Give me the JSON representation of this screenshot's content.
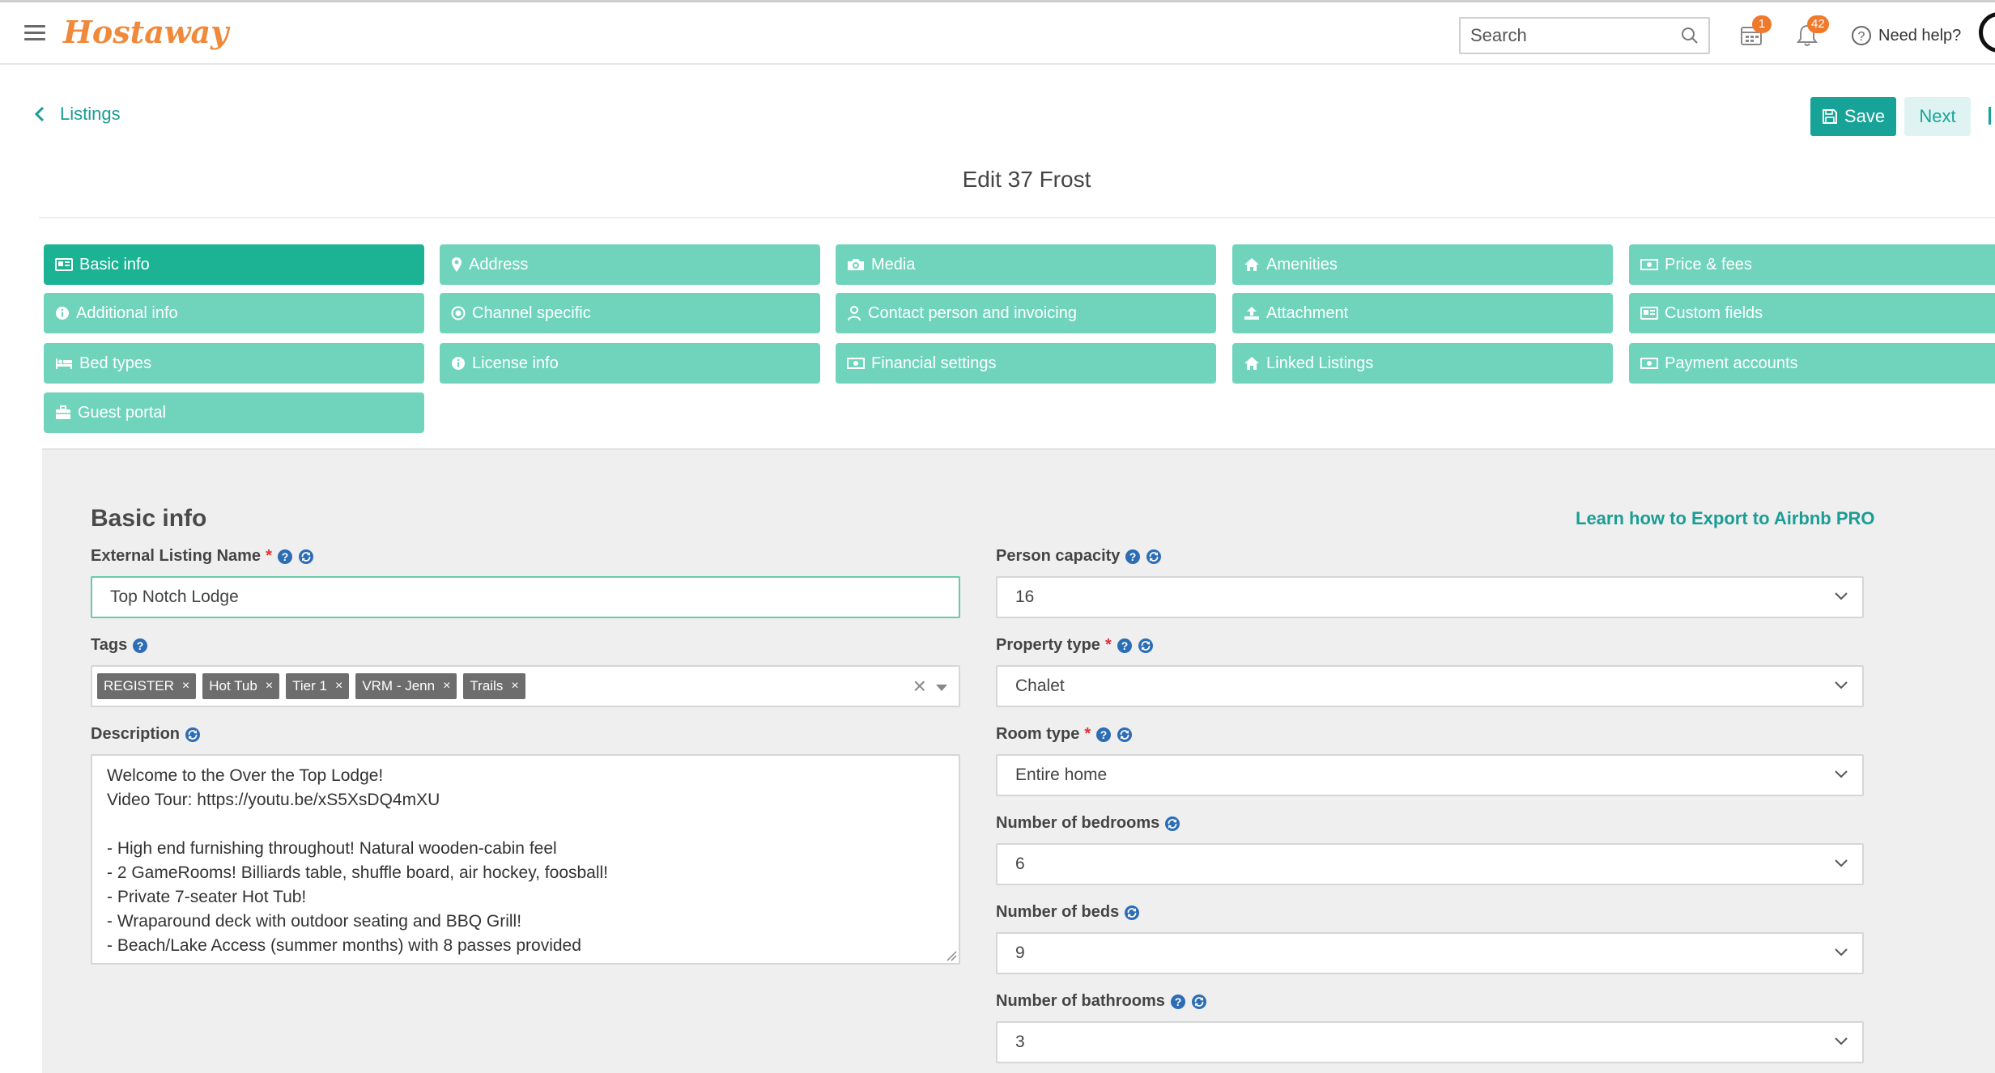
{
  "app": {
    "logo": "Hostaway",
    "search_placeholder": "Search",
    "calendar_badge": "1",
    "notifications_badge": "42",
    "help_label": "Need help?"
  },
  "header": {
    "back_label": "Listings",
    "save_label": "Save",
    "next_label": "Next",
    "title": "Edit 37 Frost"
  },
  "tabs": [
    {
      "label": "Basic info",
      "icon": "id-card-icon",
      "active": true
    },
    {
      "label": "Address",
      "icon": "map-marker-icon"
    },
    {
      "label": "Media",
      "icon": "camera-icon"
    },
    {
      "label": "Amenities",
      "icon": "home-icon"
    },
    {
      "label": "Price & fees",
      "icon": "money-icon"
    },
    {
      "label": "Additional info",
      "icon": "info-circle-icon"
    },
    {
      "label": "Channel specific",
      "icon": "channel-icon"
    },
    {
      "label": "Contact person and invoicing",
      "icon": "user-icon"
    },
    {
      "label": "Attachment",
      "icon": "upload-icon"
    },
    {
      "label": "Custom fields",
      "icon": "id-card-icon"
    },
    {
      "label": "Bed types",
      "icon": "bed-icon"
    },
    {
      "label": "License info",
      "icon": "info-circle-icon"
    },
    {
      "label": "Financial settings",
      "icon": "money-icon"
    },
    {
      "label": "Linked Listings",
      "icon": "home-icon"
    },
    {
      "label": "Payment accounts",
      "icon": "money-icon"
    },
    {
      "label": "Guest portal",
      "icon": "briefcase-icon"
    }
  ],
  "section": {
    "title": "Basic info",
    "learn_link": "Learn how to Export to Airbnb PRO"
  },
  "fields": {
    "external_name": {
      "label": "External Listing Name",
      "required": "*",
      "value": "Top Notch Lodge"
    },
    "tags": {
      "label": "Tags",
      "items": [
        "REGISTER",
        "Hot Tub",
        "Tier 1",
        "VRM - Jenn",
        "Trails"
      ],
      "remove": "×",
      "clear": "×"
    },
    "description": {
      "label": "Description",
      "lines": [
        "Welcome to the Over the Top Lodge!",
        "Video Tour: https://youtu.be/xS5XsDQ4mXU",
        "",
        "- High end furnishing throughout! Natural wooden-cabin feel",
        "- 2 GameRooms! Billiards table, shuffle board, air hockey, foosball!",
        "- Private 7-seater Hot Tub!",
        "- Wraparound deck with outdoor seating and BBQ Grill!",
        "- Beach/Lake Access (summer months) with 8 passes provided"
      ]
    },
    "person_capacity": {
      "label": "Person capacity",
      "value": "16"
    },
    "property_type": {
      "label": "Property type",
      "required": "*",
      "value": "Chalet"
    },
    "room_type": {
      "label": "Room type",
      "required": "*",
      "value": "Entire home"
    },
    "bedrooms": {
      "label": "Number of bedrooms",
      "value": "6"
    },
    "beds": {
      "label": "Number of beds",
      "value": "9"
    },
    "bathrooms": {
      "label": "Number of bathrooms",
      "value": "3"
    }
  },
  "colors": {
    "accent": "#17a398",
    "tab": "#70d4bd",
    "tab_active": "#1bb394",
    "logo": "#f0893a",
    "badge": "#f07a2c",
    "help_icon": "#2d6db5"
  }
}
